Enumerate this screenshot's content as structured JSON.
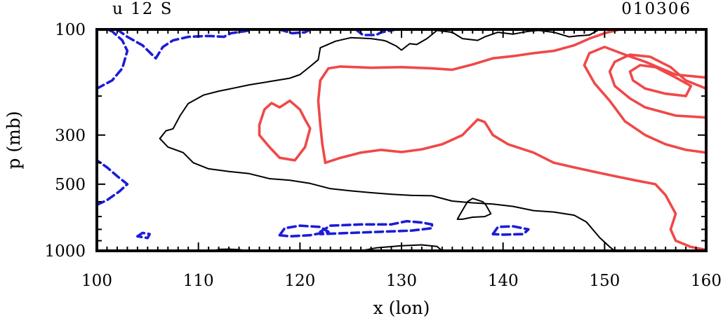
{
  "chart_data": {
    "type": "contour",
    "title_left": "u 12 S",
    "title_right": "010306",
    "xlabel": "x (lon)",
    "ylabel": "p (mb)",
    "xlim": [
      100,
      160
    ],
    "ylim_pressure": [
      1000,
      100
    ],
    "y_scale": "log",
    "x_ticks": [
      {
        "value": 100,
        "label": "100"
      },
      {
        "value": 110,
        "label": "110"
      },
      {
        "value": 120,
        "label": "120"
      },
      {
        "value": 130,
        "label": "130"
      },
      {
        "value": 140,
        "label": "140"
      },
      {
        "value": 150,
        "label": "150"
      },
      {
        "value": 160,
        "label": "160"
      }
    ],
    "y_ticks": [
      {
        "value": 100,
        "label": "100"
      },
      {
        "value": 300,
        "label": "300"
      },
      {
        "value": 500,
        "label": "500"
      },
      {
        "value": 1000,
        "label": "1000"
      }
    ],
    "colors": {
      "positive": "#f04848",
      "negative": "#1c1cd8",
      "zero": "#000000"
    },
    "contours": [
      {
        "name": "zero-contour-main",
        "sign": "zero",
        "points": [
          [
            106.2,
            311
          ],
          [
            106.8,
            287
          ],
          [
            107.5,
            281
          ],
          [
            108.2,
            245
          ],
          [
            109,
            216
          ],
          [
            110.5,
            198
          ],
          [
            112,
            190
          ],
          [
            113.5,
            184
          ],
          [
            115,
            178
          ],
          [
            117,
            172
          ],
          [
            119,
            166
          ],
          [
            120,
            160
          ],
          [
            121,
            147
          ],
          [
            121.8,
            137
          ],
          [
            122,
            121
          ],
          [
            123.5,
            113
          ],
          [
            125,
            109
          ],
          [
            127,
            110
          ],
          [
            128.2,
            112
          ],
          [
            128.5,
            113
          ],
          [
            129.5,
            119
          ],
          [
            130,
            124
          ],
          [
            130.8,
            116
          ],
          [
            131.5,
            117
          ],
          [
            132.5,
            110
          ],
          [
            133.5,
            101
          ],
          [
            135,
            103
          ],
          [
            136,
            110
          ],
          [
            137.5,
            112
          ],
          [
            138.2,
            108
          ],
          [
            139.5,
            103
          ],
          [
            141,
            105
          ],
          [
            142.5,
            102
          ],
          [
            143.5,
            101
          ],
          [
            145,
            103
          ],
          [
            146.5,
            108
          ],
          [
            147.3,
            107
          ],
          [
            148.5,
            106
          ],
          [
            149.5,
            100
          ],
          [
            151,
            100
          ]
        ]
      },
      {
        "name": "zero-contour-lower",
        "sign": "zero",
        "points": [
          [
            106.2,
            311
          ],
          [
            107,
            340
          ],
          [
            108.5,
            360
          ],
          [
            109.5,
            400
          ],
          [
            111,
            426
          ],
          [
            113,
            438
          ],
          [
            115,
            448
          ],
          [
            117,
            472
          ],
          [
            119,
            480
          ],
          [
            121,
            496
          ],
          [
            123,
            524
          ],
          [
            125,
            536
          ],
          [
            127,
            546
          ],
          [
            129,
            555
          ],
          [
            131,
            562
          ],
          [
            133,
            564
          ],
          [
            135,
            596
          ],
          [
            137,
            607
          ],
          [
            139,
            615
          ],
          [
            141,
            630
          ],
          [
            143,
            658
          ],
          [
            145,
            668
          ],
          [
            147,
            690
          ],
          [
            148.2,
            740
          ],
          [
            149.5,
            870
          ],
          [
            150.5,
            960
          ],
          [
            151,
            1000
          ]
        ]
      },
      {
        "name": "zero-contour-small-loop",
        "sign": "zero",
        "points": [
          [
            135.5,
            720
          ],
          [
            135.8,
            680
          ],
          [
            136.5,
            600
          ],
          [
            137,
            580
          ],
          [
            138,
            600
          ],
          [
            138.3,
            620
          ],
          [
            138.8,
            680
          ],
          [
            138.2,
            700
          ],
          [
            137,
            705
          ],
          [
            136,
            720
          ],
          [
            135.5,
            720
          ]
        ]
      },
      {
        "name": "zero-contour-bottom",
        "sign": "zero",
        "points": [
          [
            111.5,
            1000
          ],
          [
            112,
            985
          ],
          [
            113,
            983
          ],
          [
            114,
            988
          ],
          [
            114.8,
            1000
          ]
        ]
      },
      {
        "name": "zero-contour-bottom-2",
        "sign": "zero",
        "points": [
          [
            126,
            1000
          ],
          [
            127.5,
            970
          ],
          [
            130,
            948
          ],
          [
            132,
            940
          ],
          [
            133.5,
            955
          ],
          [
            134,
            1000
          ]
        ]
      },
      {
        "name": "pos-contour-10-a",
        "sign": "positive",
        "points": [
          [
            122.5,
            400
          ],
          [
            122.2,
            330
          ],
          [
            122,
            270
          ],
          [
            121.8,
            210
          ],
          [
            122,
            170
          ],
          [
            122.8,
            150
          ],
          [
            124,
            147
          ],
          [
            127,
            149
          ],
          [
            130,
            148
          ],
          [
            133,
            150
          ],
          [
            135,
            152
          ],
          [
            137,
            144
          ],
          [
            139,
            135
          ],
          [
            141,
            132
          ],
          [
            143,
            128
          ],
          [
            145,
            125
          ],
          [
            147,
            118
          ],
          [
            148.5,
            110
          ],
          [
            150,
            104
          ],
          [
            151.5,
            100
          ]
        ]
      },
      {
        "name": "pos-contour-10-b",
        "sign": "positive",
        "points": [
          [
            122.5,
            400
          ],
          [
            124,
            380
          ],
          [
            126,
            360
          ],
          [
            128,
            350
          ],
          [
            130,
            358
          ],
          [
            132,
            348
          ],
          [
            134,
            330
          ],
          [
            136,
            300
          ],
          [
            137.5,
            255
          ],
          [
            138.2,
            262
          ],
          [
            139,
            300
          ],
          [
            140.5,
            330
          ],
          [
            143,
            360
          ],
          [
            145,
            400
          ],
          [
            147,
            420
          ],
          [
            149,
            440
          ],
          [
            151,
            460
          ],
          [
            153,
            480
          ],
          [
            155,
            500
          ],
          [
            156,
            560
          ],
          [
            157,
            680
          ],
          [
            156.5,
            800
          ],
          [
            157,
            900
          ],
          [
            158.5,
            960
          ],
          [
            160,
            990
          ]
        ]
      },
      {
        "name": "pos-contour-10-island",
        "sign": "positive",
        "points": [
          [
            116,
            270
          ],
          [
            116.5,
            230
          ],
          [
            117.2,
            215
          ],
          [
            118,
            225
          ],
          [
            119,
            210
          ],
          [
            120,
            230
          ],
          [
            120.5,
            255
          ],
          [
            121,
            280
          ],
          [
            120.5,
            340
          ],
          [
            119.5,
            390
          ],
          [
            118,
            380
          ],
          [
            117,
            340
          ],
          [
            116,
            300
          ],
          [
            116,
            270
          ]
        ]
      },
      {
        "name": "pos-contour-20",
        "sign": "positive",
        "points": [
          [
            160,
            165
          ],
          [
            157,
            160
          ],
          [
            154,
            140
          ],
          [
            152,
            130
          ],
          [
            150,
            120
          ],
          [
            148.5,
            128
          ],
          [
            148,
            145
          ],
          [
            149,
            175
          ],
          [
            150.5,
            210
          ],
          [
            152,
            260
          ],
          [
            154,
            300
          ],
          [
            156,
            330
          ],
          [
            158,
            350
          ],
          [
            160,
            360
          ]
        ]
      },
      {
        "name": "pos-contour-30",
        "sign": "positive",
        "points": [
          [
            160,
            250
          ],
          [
            157,
            245
          ],
          [
            154,
            225
          ],
          [
            152.5,
            205
          ],
          [
            151,
            180
          ],
          [
            150.5,
            155
          ],
          [
            151,
            140
          ],
          [
            152.5,
            130
          ],
          [
            154.5,
            133
          ],
          [
            156.5,
            148
          ],
          [
            158,
            170
          ],
          [
            160,
            185
          ]
        ]
      },
      {
        "name": "pos-contour-40",
        "sign": "positive",
        "points": [
          [
            158,
            200
          ],
          [
            156,
            195
          ],
          [
            154,
            185
          ],
          [
            152.8,
            170
          ],
          [
            152.5,
            155
          ],
          [
            153.5,
            145
          ],
          [
            155,
            148
          ],
          [
            157,
            165
          ],
          [
            158.5,
            180
          ],
          [
            158,
            200
          ]
        ]
      },
      {
        "name": "neg-contour-left-a",
        "sign": "negative",
        "points": [
          [
            100,
            185
          ],
          [
            101.5,
            170
          ],
          [
            102.5,
            150
          ],
          [
            103,
            125
          ],
          [
            102.5,
            112
          ],
          [
            101.5,
            102
          ],
          [
            101,
            100
          ]
        ]
      },
      {
        "name": "neg-contour-left-b",
        "sign": "negative",
        "points": [
          [
            100,
            620
          ],
          [
            101,
            590
          ],
          [
            102.2,
            540
          ],
          [
            103,
            500
          ],
          [
            102,
            460
          ],
          [
            101,
            420
          ],
          [
            100,
            390
          ]
        ]
      },
      {
        "name": "neg-contour-top-a",
        "sign": "negative",
        "points": [
          [
            102,
            100
          ],
          [
            103,
            108
          ],
          [
            104.5,
            118
          ],
          [
            105.8,
            135
          ],
          [
            106.5,
            120
          ],
          [
            107.5,
            112
          ],
          [
            109,
            108
          ],
          [
            111,
            107
          ],
          [
            112.5,
            108
          ],
          [
            113.2,
            104
          ],
          [
            114.5,
            102
          ],
          [
            115.5,
            100
          ]
        ]
      },
      {
        "name": "neg-contour-top-b",
        "sign": "negative",
        "points": [
          [
            118,
            100
          ],
          [
            119.2,
            104
          ],
          [
            120.5,
            103
          ],
          [
            121,
            100
          ]
        ]
      },
      {
        "name": "neg-contour-top-c",
        "sign": "negative",
        "points": [
          [
            125.5,
            100
          ],
          [
            126.2,
            106
          ],
          [
            127.5,
            106
          ],
          [
            128,
            103
          ],
          [
            129,
            101
          ],
          [
            129.5,
            100
          ]
        ]
      },
      {
        "name": "neg-contour-lower-1",
        "sign": "negative",
        "points": [
          [
            118,
            850
          ],
          [
            118.5,
            790
          ],
          [
            120,
            770
          ],
          [
            122,
            780
          ],
          [
            122.8,
            820
          ],
          [
            121,
            850
          ],
          [
            119,
            860
          ],
          [
            118,
            850
          ]
        ]
      },
      {
        "name": "neg-contour-lower-2",
        "sign": "negative",
        "points": [
          [
            122,
            820
          ],
          [
            123,
            770
          ],
          [
            126,
            760
          ],
          [
            129,
            760
          ],
          [
            130.5,
            735
          ],
          [
            132,
            745
          ],
          [
            133,
            760
          ],
          [
            133,
            790
          ],
          [
            131,
            810
          ],
          [
            128,
            820
          ],
          [
            125,
            830
          ],
          [
            122,
            840
          ],
          [
            122,
            820
          ]
        ]
      },
      {
        "name": "neg-contour-lower-3",
        "sign": "negative",
        "points": [
          [
            139,
            840
          ],
          [
            139.5,
            780
          ],
          [
            141,
            775
          ],
          [
            142.5,
            800
          ],
          [
            142,
            840
          ],
          [
            140,
            845
          ],
          [
            139,
            840
          ]
        ]
      },
      {
        "name": "neg-contour-lower-4",
        "sign": "negative",
        "points": [
          [
            104,
            860
          ],
          [
            104.5,
            830
          ],
          [
            105.2,
            840
          ],
          [
            105,
            875
          ],
          [
            104,
            860
          ]
        ]
      }
    ]
  }
}
